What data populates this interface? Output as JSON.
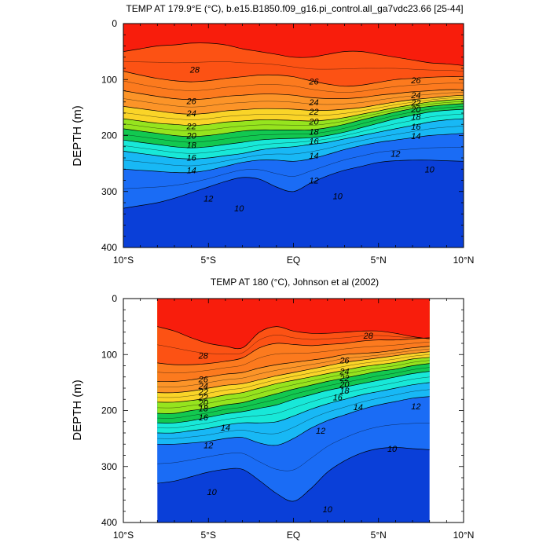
{
  "chart_data": [
    {
      "type": "contour",
      "title": "TEMP AT 179.9°E (°C), b.e15.B1850.f09_g16.pi_control.all_ga7vdc23.66 [25-44]",
      "ylabel": "DEPTH (m)",
      "x_ticks": [
        "10°S",
        "5°S",
        "EQ",
        "5°N",
        "10°N"
      ],
      "y_ticks": [
        "0",
        "100",
        "200",
        "300",
        "400"
      ],
      "xlim": [
        -10,
        10
      ],
      "ylim": [
        400,
        0
      ],
      "y_inverted": true,
      "contour_levels": [
        {
          "value": 28,
          "depth": [
            50,
            45,
            40,
            38,
            35,
            35,
            38,
            45,
            50,
            55,
            60,
            60,
            55,
            50,
            50,
            55,
            60,
            65,
            70,
            72,
            75
          ]
        },
        {
          "value": 26,
          "depth": [
            85,
            92,
            98,
            102,
            104,
            102,
            98,
            95,
            92,
            92,
            95,
            102,
            108,
            112,
            110,
            105,
            100,
            98,
            96,
            95,
            95
          ]
        },
        {
          "value": 24,
          "depth": [
            120,
            125,
            130,
            134,
            136,
            134,
            130,
            128,
            126,
            126,
            128,
            132,
            134,
            134,
            132,
            128,
            125,
            122,
            120,
            118,
            118
          ]
        },
        {
          "value": 22,
          "depth": [
            148,
            152,
            156,
            160,
            162,
            160,
            156,
            154,
            152,
            152,
            153,
            155,
            155,
            153,
            150,
            145,
            140,
            136,
            133,
            130,
            128
          ]
        },
        {
          "value": 20,
          "depth": [
            170,
            174,
            178,
            180,
            182,
            180,
            176,
            174,
            172,
            172,
            173,
            174,
            172,
            168,
            162,
            156,
            150,
            145,
            140,
            137,
            135
          ]
        },
        {
          "value": 18,
          "depth": [
            188,
            192,
            196,
            200,
            202,
            200,
            196,
            192,
            190,
            190,
            190,
            190,
            186,
            180,
            172,
            165,
            158,
            152,
            148,
            145,
            143
          ]
        },
        {
          "value": 16,
          "depth": [
            208,
            212,
            216,
            220,
            222,
            220,
            216,
            212,
            208,
            206,
            205,
            204,
            200,
            194,
            186,
            178,
            170,
            164,
            158,
            155,
            153
          ]
        },
        {
          "value": 14,
          "depth": [
            228,
            232,
            236,
            240,
            242,
            240,
            236,
            232,
            226,
            222,
            220,
            216,
            212,
            206,
            200,
            194,
            188,
            182,
            176,
            172,
            170
          ]
        },
        {
          "value": 12,
          "depth": [
            260,
            262,
            264,
            266,
            266,
            262,
            255,
            248,
            244,
            244,
            246,
            242,
            234,
            225,
            218,
            212,
            208,
            204,
            200,
            198,
            196
          ]
        },
        {
          "value": 10,
          "depth": [
            330,
            325,
            320,
            312,
            302,
            292,
            282,
            275,
            278,
            292,
            300,
            285,
            272,
            262,
            255,
            248,
            245,
            244,
            244,
            245,
            246
          ]
        }
      ],
      "contour_labels": [
        {
          "text": "28",
          "x": -5.8,
          "y": 82
        },
        {
          "text": "26",
          "x": 1.2,
          "y": 103
        },
        {
          "text": "26",
          "x": 7.2,
          "y": 101
        },
        {
          "text": "26",
          "x": -6.0,
          "y": 138
        },
        {
          "text": "24",
          "x": 1.2,
          "y": 140
        },
        {
          "text": "24",
          "x": 7.2,
          "y": 128
        },
        {
          "text": "24",
          "x": -6.0,
          "y": 160
        },
        {
          "text": "22",
          "x": 1.2,
          "y": 157
        },
        {
          "text": "22",
          "x": 7.2,
          "y": 141
        },
        {
          "text": "22",
          "x": -6.0,
          "y": 183
        },
        {
          "text": "20",
          "x": 1.2,
          "y": 175
        },
        {
          "text": "20",
          "x": 7.2,
          "y": 153
        },
        {
          "text": "20",
          "x": -6.0,
          "y": 200
        },
        {
          "text": "18",
          "x": 1.2,
          "y": 193
        },
        {
          "text": "18",
          "x": 7.2,
          "y": 166
        },
        {
          "text": "18",
          "x": -6.0,
          "y": 217
        },
        {
          "text": "16",
          "x": 1.2,
          "y": 210
        },
        {
          "text": "16",
          "x": 7.2,
          "y": 184
        },
        {
          "text": "16",
          "x": -6.0,
          "y": 239
        },
        {
          "text": "14",
          "x": 1.2,
          "y": 236
        },
        {
          "text": "14",
          "x": 7.2,
          "y": 201
        },
        {
          "text": "14",
          "x": -6.0,
          "y": 262
        },
        {
          "text": "12",
          "x": 1.2,
          "y": 280
        },
        {
          "text": "12",
          "x": 6.0,
          "y": 232
        },
        {
          "text": "12",
          "x": -5.0,
          "y": 312
        },
        {
          "text": "10",
          "x": 8.0,
          "y": 260
        },
        {
          "text": "10",
          "x": -3.2,
          "y": 330
        },
        {
          "text": "10",
          "x": 2.6,
          "y": 308
        }
      ]
    },
    {
      "type": "contour",
      "title": "TEMP AT 180 (°C), Johnson et al (2002)",
      "ylabel": "DEPTH (m)",
      "x_ticks": [
        "10°S",
        "5°S",
        "EQ",
        "5°N",
        "10°N"
      ],
      "y_ticks": [
        "0",
        "100",
        "200",
        "300",
        "400"
      ],
      "xlim": [
        -10,
        10
      ],
      "ylim": [
        400,
        0
      ],
      "y_inverted": true,
      "data_xlim": [
        -8,
        8
      ],
      "contour_levels": [
        {
          "value": 28,
          "depth": [
            50,
            58,
            70,
            80,
            85,
            88,
            60,
            50,
            58,
            62,
            62,
            60,
            58,
            58,
            62,
            68,
            72
          ]
        },
        {
          "value": 26,
          "depth": [
            115,
            118,
            118,
            116,
            112,
            106,
            88,
            80,
            82,
            84,
            82,
            80,
            76,
            74,
            74,
            72,
            70
          ]
        },
        {
          "value": 24,
          "depth": [
            148,
            148,
            145,
            140,
            135,
            132,
            124,
            118,
            114,
            110,
            106,
            100,
            98,
            96,
            92,
            88,
            85
          ]
        },
        {
          "value": 22,
          "depth": [
            168,
            168,
            165,
            160,
            155,
            152,
            145,
            138,
            132,
            126,
            120,
            114,
            110,
            106,
            102,
            98,
            95
          ]
        },
        {
          "value": 20,
          "depth": [
            185,
            185,
            182,
            178,
            172,
            168,
            160,
            152,
            146,
            140,
            134,
            128,
            122,
            118,
            114,
            108,
            105
          ]
        },
        {
          "value": 18,
          "depth": [
            205,
            205,
            200,
            196,
            190,
            186,
            178,
            170,
            162,
            155,
            148,
            142,
            136,
            130,
            126,
            120,
            116
          ]
        },
        {
          "value": 16,
          "depth": [
            222,
            222,
            218,
            212,
            206,
            202,
            196,
            190,
            180,
            172,
            164,
            158,
            152,
            146,
            140,
            134,
            130
          ]
        },
        {
          "value": 14,
          "depth": [
            240,
            240,
            236,
            232,
            226,
            222,
            222,
            220,
            210,
            198,
            188,
            180,
            172,
            166,
            160,
            154,
            150
          ]
        },
        {
          "value": 12,
          "depth": [
            260,
            260,
            258,
            255,
            250,
            248,
            258,
            262,
            250,
            232,
            218,
            208,
            198,
            190,
            184,
            178,
            175
          ]
        },
        {
          "value": 10,
          "depth": [
            330,
            326,
            318,
            310,
            305,
            305,
            325,
            348,
            362,
            340,
            310,
            290,
            276,
            268,
            266,
            268,
            270
          ]
        }
      ],
      "contour_labels": [
        {
          "text": "28",
          "x": -5.3,
          "y": 102
        },
        {
          "text": "28",
          "x": 4.4,
          "y": 66
        },
        {
          "text": "26",
          "x": -5.3,
          "y": 144
        },
        {
          "text": "26",
          "x": 3.0,
          "y": 110
        },
        {
          "text": "24",
          "x": -5.3,
          "y": 156
        },
        {
          "text": "24",
          "x": 3.0,
          "y": 130
        },
        {
          "text": "22",
          "x": -5.3,
          "y": 166
        },
        {
          "text": "22",
          "x": 3.0,
          "y": 142
        },
        {
          "text": "22",
          "x": -5.3,
          "y": 176
        },
        {
          "text": "20",
          "x": -5.3,
          "y": 186
        },
        {
          "text": "20",
          "x": 3.0,
          "y": 153
        },
        {
          "text": "18",
          "x": -5.3,
          "y": 196
        },
        {
          "text": "18",
          "x": 3.0,
          "y": 164
        },
        {
          "text": "16",
          "x": -5.3,
          "y": 212
        },
        {
          "text": "16",
          "x": 2.6,
          "y": 176
        },
        {
          "text": "14",
          "x": 3.8,
          "y": 194
        },
        {
          "text": "14",
          "x": -4.0,
          "y": 230
        },
        {
          "text": "12",
          "x": -5.0,
          "y": 262
        },
        {
          "text": "12",
          "x": 1.6,
          "y": 236
        },
        {
          "text": "12",
          "x": 7.2,
          "y": 192
        },
        {
          "text": "10",
          "x": 5.8,
          "y": 268
        },
        {
          "text": "10",
          "x": -4.8,
          "y": 345
        },
        {
          "text": "10",
          "x": 2.0,
          "y": 376
        }
      ]
    }
  ],
  "colors": {
    "levels": [
      "#0a3fd8",
      "#1a6cf5",
      "#1c96f5",
      "#18b8f5",
      "#14d8f5",
      "#18e8d8",
      "#1ad890",
      "#12c850",
      "#3ed838",
      "#96e41e",
      "#e6f01e",
      "#fad428",
      "#fcb03c",
      "#fc9428",
      "#fc7a1e",
      "#fc5214",
      "#f81d0c",
      "#d40e0e",
      "#a51010"
    ],
    "thresholds": [
      8,
      10,
      11,
      12,
      13,
      14,
      15,
      16,
      17,
      18,
      19,
      20,
      21,
      22,
      24,
      26,
      28,
      29,
      30
    ],
    "blank": "#ffffff",
    "contour_line": "#000000"
  }
}
